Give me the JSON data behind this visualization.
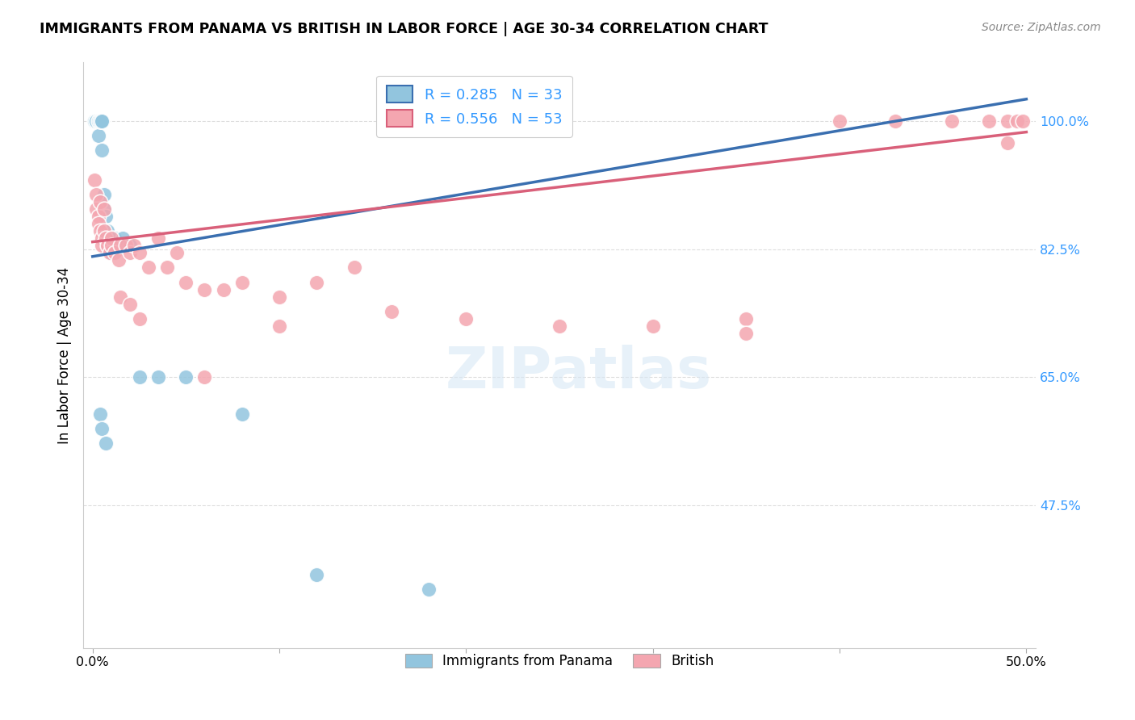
{
  "title": "IMMIGRANTS FROM PANAMA VS BRITISH IN LABOR FORCE | AGE 30-34 CORRELATION CHART",
  "source": "Source: ZipAtlas.com",
  "ylabel": "In Labor Force | Age 30-34",
  "xlim": [
    -0.005,
    0.505
  ],
  "ylim": [
    0.28,
    1.08
  ],
  "xtick_vals": [
    0.0,
    0.1,
    0.2,
    0.3,
    0.4,
    0.5
  ],
  "xtick_labels": [
    "0.0%",
    "",
    "",
    "",
    "",
    "50.0%"
  ],
  "ytick_vals": [
    1.0,
    0.825,
    0.65,
    0.475
  ],
  "ytick_labels": [
    "100.0%",
    "82.5%",
    "65.0%",
    "47.5%"
  ],
  "grid_color": "#dddddd",
  "background_color": "#ffffff",
  "blue_R": 0.285,
  "blue_N": 33,
  "pink_R": 0.556,
  "pink_N": 53,
  "legend_label_blue": "Immigrants from Panama",
  "legend_label_pink": "British",
  "blue_color": "#92c5de",
  "pink_color": "#f4a6b0",
  "blue_line_color": "#3a6fb0",
  "pink_line_color": "#d9607a",
  "blue_line_x0": 0.0,
  "blue_line_y0": 0.815,
  "blue_line_x1": 0.5,
  "blue_line_y1": 1.03,
  "pink_line_x0": 0.0,
  "pink_line_y0": 0.835,
  "pink_line_x1": 0.5,
  "pink_line_y1": 0.985,
  "panama_x": [
    0.001,
    0.002,
    0.002,
    0.003,
    0.003,
    0.003,
    0.004,
    0.004,
    0.005,
    0.005,
    0.005,
    0.006,
    0.006,
    0.007,
    0.007,
    0.008,
    0.008,
    0.009,
    0.01,
    0.01,
    0.012,
    0.014,
    0.016,
    0.02,
    0.025,
    0.035,
    0.05,
    0.08,
    0.12,
    0.18,
    0.004,
    0.005,
    0.007
  ],
  "panama_y": [
    1.0,
    1.0,
    1.0,
    1.0,
    1.0,
    0.98,
    1.0,
    1.0,
    1.0,
    1.0,
    0.96,
    0.9,
    0.88,
    0.87,
    0.85,
    0.85,
    0.84,
    0.84,
    0.83,
    0.82,
    0.84,
    0.83,
    0.84,
    0.83,
    0.65,
    0.65,
    0.65,
    0.6,
    0.38,
    0.36,
    0.6,
    0.58,
    0.56
  ],
  "british_x": [
    0.001,
    0.002,
    0.002,
    0.003,
    0.003,
    0.004,
    0.004,
    0.005,
    0.005,
    0.006,
    0.006,
    0.007,
    0.008,
    0.009,
    0.01,
    0.01,
    0.012,
    0.014,
    0.015,
    0.018,
    0.02,
    0.022,
    0.025,
    0.03,
    0.035,
    0.04,
    0.045,
    0.05,
    0.06,
    0.07,
    0.08,
    0.1,
    0.12,
    0.14,
    0.16,
    0.2,
    0.25,
    0.3,
    0.35,
    0.4,
    0.43,
    0.46,
    0.48,
    0.49,
    0.495,
    0.498,
    0.015,
    0.02,
    0.025,
    0.06,
    0.1,
    0.35,
    0.49
  ],
  "british_y": [
    0.92,
    0.9,
    0.88,
    0.87,
    0.86,
    0.85,
    0.89,
    0.84,
    0.83,
    0.88,
    0.85,
    0.84,
    0.83,
    0.82,
    0.84,
    0.83,
    0.82,
    0.81,
    0.83,
    0.83,
    0.82,
    0.83,
    0.82,
    0.8,
    0.84,
    0.8,
    0.82,
    0.78,
    0.77,
    0.77,
    0.78,
    0.76,
    0.78,
    0.8,
    0.74,
    0.73,
    0.72,
    0.72,
    0.73,
    1.0,
    1.0,
    1.0,
    1.0,
    1.0,
    1.0,
    1.0,
    0.76,
    0.75,
    0.73,
    0.65,
    0.72,
    0.71,
    0.97
  ]
}
